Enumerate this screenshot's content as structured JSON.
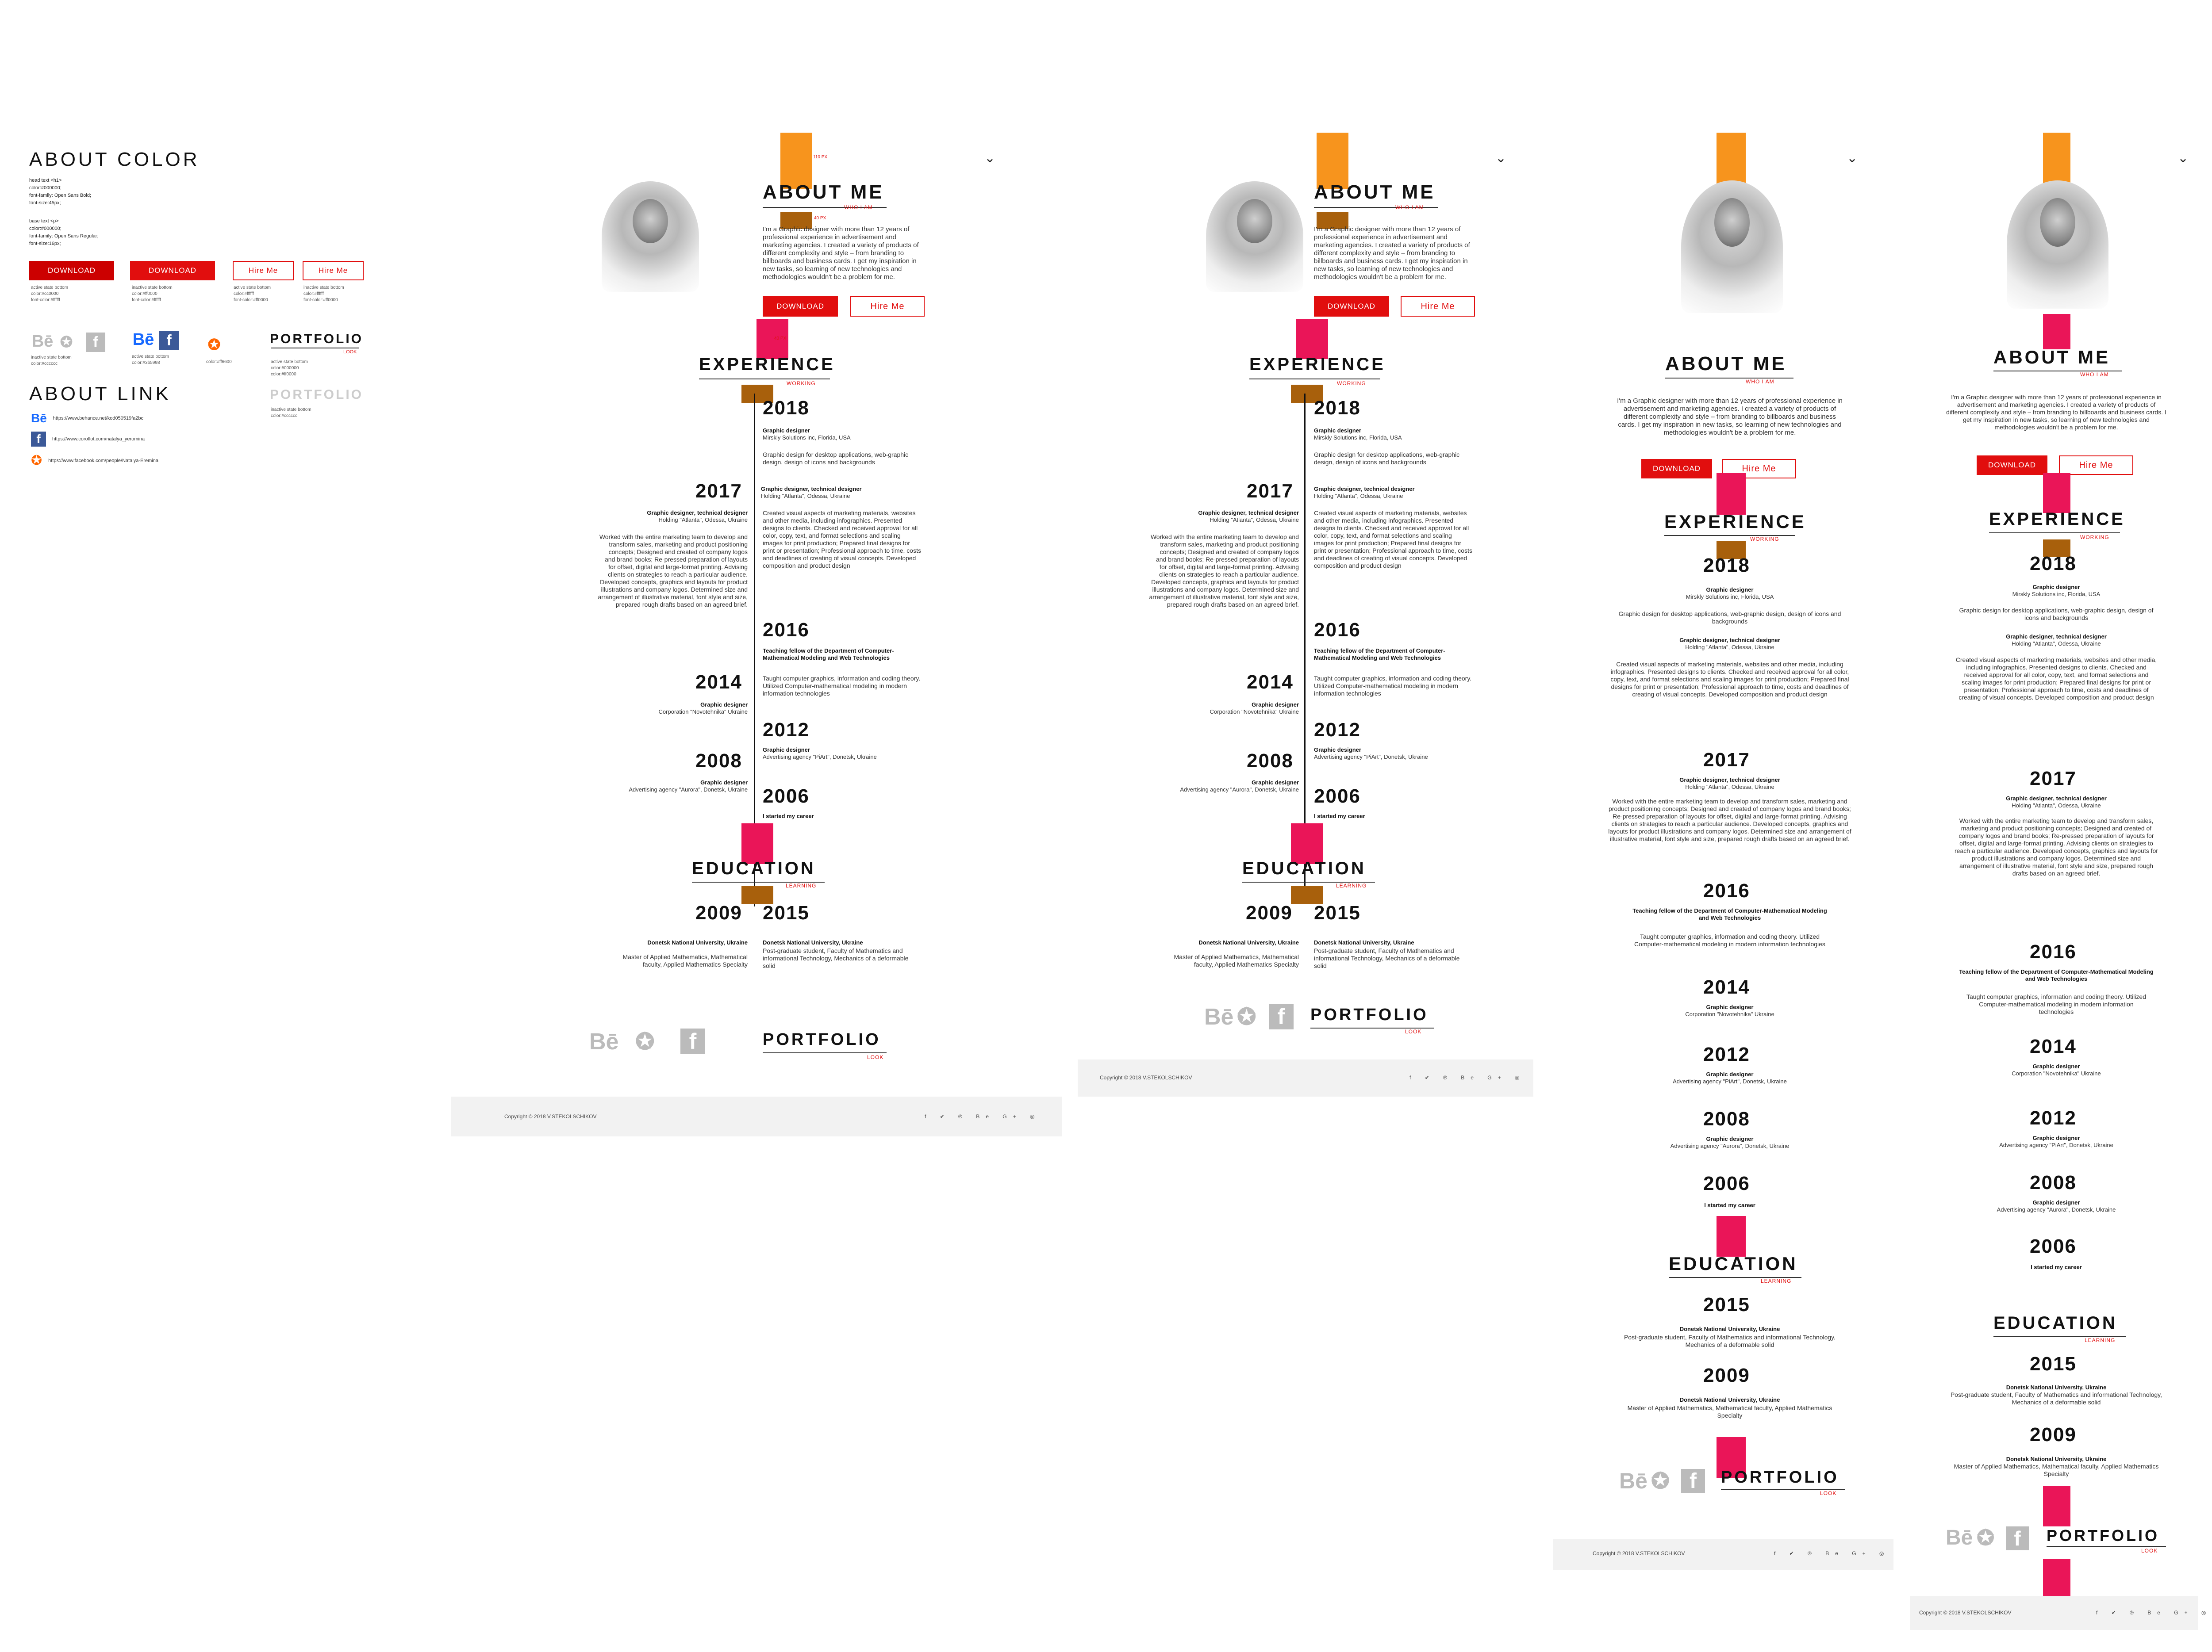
{
  "guide": {
    "about_color": "ABOUT COLOR",
    "head_spec": [
      "head text <h1>",
      "color:#000000;",
      "font-family: Open Sans Bold;",
      "font-size:45px;"
    ],
    "base_spec": [
      "base text <p>",
      "color:#000000;",
      "font-family: Open Sans Regular;",
      "font-size:16px;"
    ],
    "download": "DOWNLOAD",
    "hire": "Hire Me",
    "cap1": [
      "active state bottom",
      "color:#cc0000",
      "font-color:#ffffff"
    ],
    "cap2": [
      "inactive state bottom",
      "color:#ff0000",
      "font-color:#ffffff"
    ],
    "cap3": [
      "active state bottom",
      "color:#ffffff",
      "font-color:#ff0000"
    ],
    "cap4": [
      "inactive state bottom",
      "color:#ffffff",
      "font-color:#ff0000"
    ],
    "inactive_soc": [
      "inactive state bottom",
      "color:#cccccc"
    ],
    "active_soc": [
      "active state bottom",
      "color:#3b5998"
    ],
    "xing_cap": "color:#ff6600",
    "portfolio": "PORTFOLIO",
    "look": "LOOK",
    "portfolio_active": [
      "active state bottom",
      "color:#000000",
      "color:#ff0000"
    ],
    "portfolio_inactive": [
      "inactive state bottom",
      "color:#cccccc"
    ],
    "about_link": "ABOUT LINK",
    "links": [
      "https://www.behance.net/kod050519fa2bc",
      "https://www.coroflot.com/natalya_yeromina",
      "https://www.facebook.com/people/Natalya-Eremina"
    ]
  },
  "resume": {
    "about": "ABOUT ME",
    "who": "WHO I AM",
    "bio": "I'm a Graphic designer with more than 12 years of professional experience in advertisement and marketing agencies. I created a variety of products of different complexity and style – from branding to billboards and business cards. I get my inspiration in new tasks, so learning of new technologies and methodologies wouldn't be a problem for me.",
    "download": "DOWNLOAD",
    "hire": "Hire Me",
    "experience": "EXPERIENCE",
    "working": "WORKING",
    "education": "EDUCATION",
    "learning": "LEARNING",
    "portfolio": "PORTFOLIO",
    "look": "LOOK",
    "copyright": "Copyright © 2018 V.STEKOLSCHIKOV",
    "socials": "f  ✔  ℗  Be  G+  ◎",
    "px110": "110 PX",
    "px40": "40 PX",
    "jobs": {
      "y2018": "2018",
      "r2018": "Graphic designer",
      "p2018": "Mirskly Solutions inc, Florida, USA",
      "d2018": "Graphic design for desktop applications, web-graphic design, design of icons and backgrounds",
      "y2017": "2017",
      "r2017": "Graphic designer, technical designer",
      "p2017": "Holding \"Atlanta\", Odessa, Ukraine",
      "d2017a": "Created visual aspects of marketing materials, websites and other media, including infographics. Presented designs to clients. Checked and received approval for all color, copy, text, and format selections and scaling images for print production; Prepared final designs for print or presentation; Professional approach to time, costs and deadlines of creating of visual concepts. Developed composition and product design",
      "d2017b": "Worked with the entire marketing team to develop and transform sales, marketing and product positioning concepts; Designed and created of company logos and brand books; Re-pressed preparation of layouts for offset, digital and large-format printing. Advising clients on strategies to reach a particular audience. Developed concepts, graphics and layouts for product illustrations and company logos. Determined size and arrangement of illustrative material, font style and size, prepared rough drafts based on an agreed brief.",
      "y2016": "2016",
      "r2016": "Teaching fellow of the Department of Computer-Mathematical Modeling and Web Technologies",
      "d2016": "Taught computer graphics, information and coding theory. Utilized Computer-mathematical modeling in modern information technologies",
      "y2014": "2014",
      "r2014": "Graphic designer",
      "p2014": "Corporation \"Novotehnika\" Ukraine",
      "y2012": "2012",
      "r2012": "Graphic designer",
      "p2012": "Advertising agency \"PiArt\", Donetsk, Ukraine",
      "y2008": "2008",
      "r2008": "Graphic designer",
      "p2008": "Advertising agency \"Aurora\", Donetsk, Ukraine",
      "y2006": "2006",
      "r2006": "I started my career"
    },
    "edu": {
      "y2009": "2009",
      "u2009": "Donetsk National University, Ukraine",
      "d2009": "Master of Applied Mathematics, Mathematical faculty, Applied Mathematics Specialty",
      "y2015": "2015",
      "u2015": "Donetsk National University, Ukraine",
      "d2015": "Post-graduate student, Faculty of Mathematics and informational Technology, Mechanics of a deformable solid"
    }
  },
  "colors": {
    "orange": "#f7941d",
    "brown": "#a8600c",
    "pink": "#ea1558",
    "red": "#e10e0e"
  }
}
